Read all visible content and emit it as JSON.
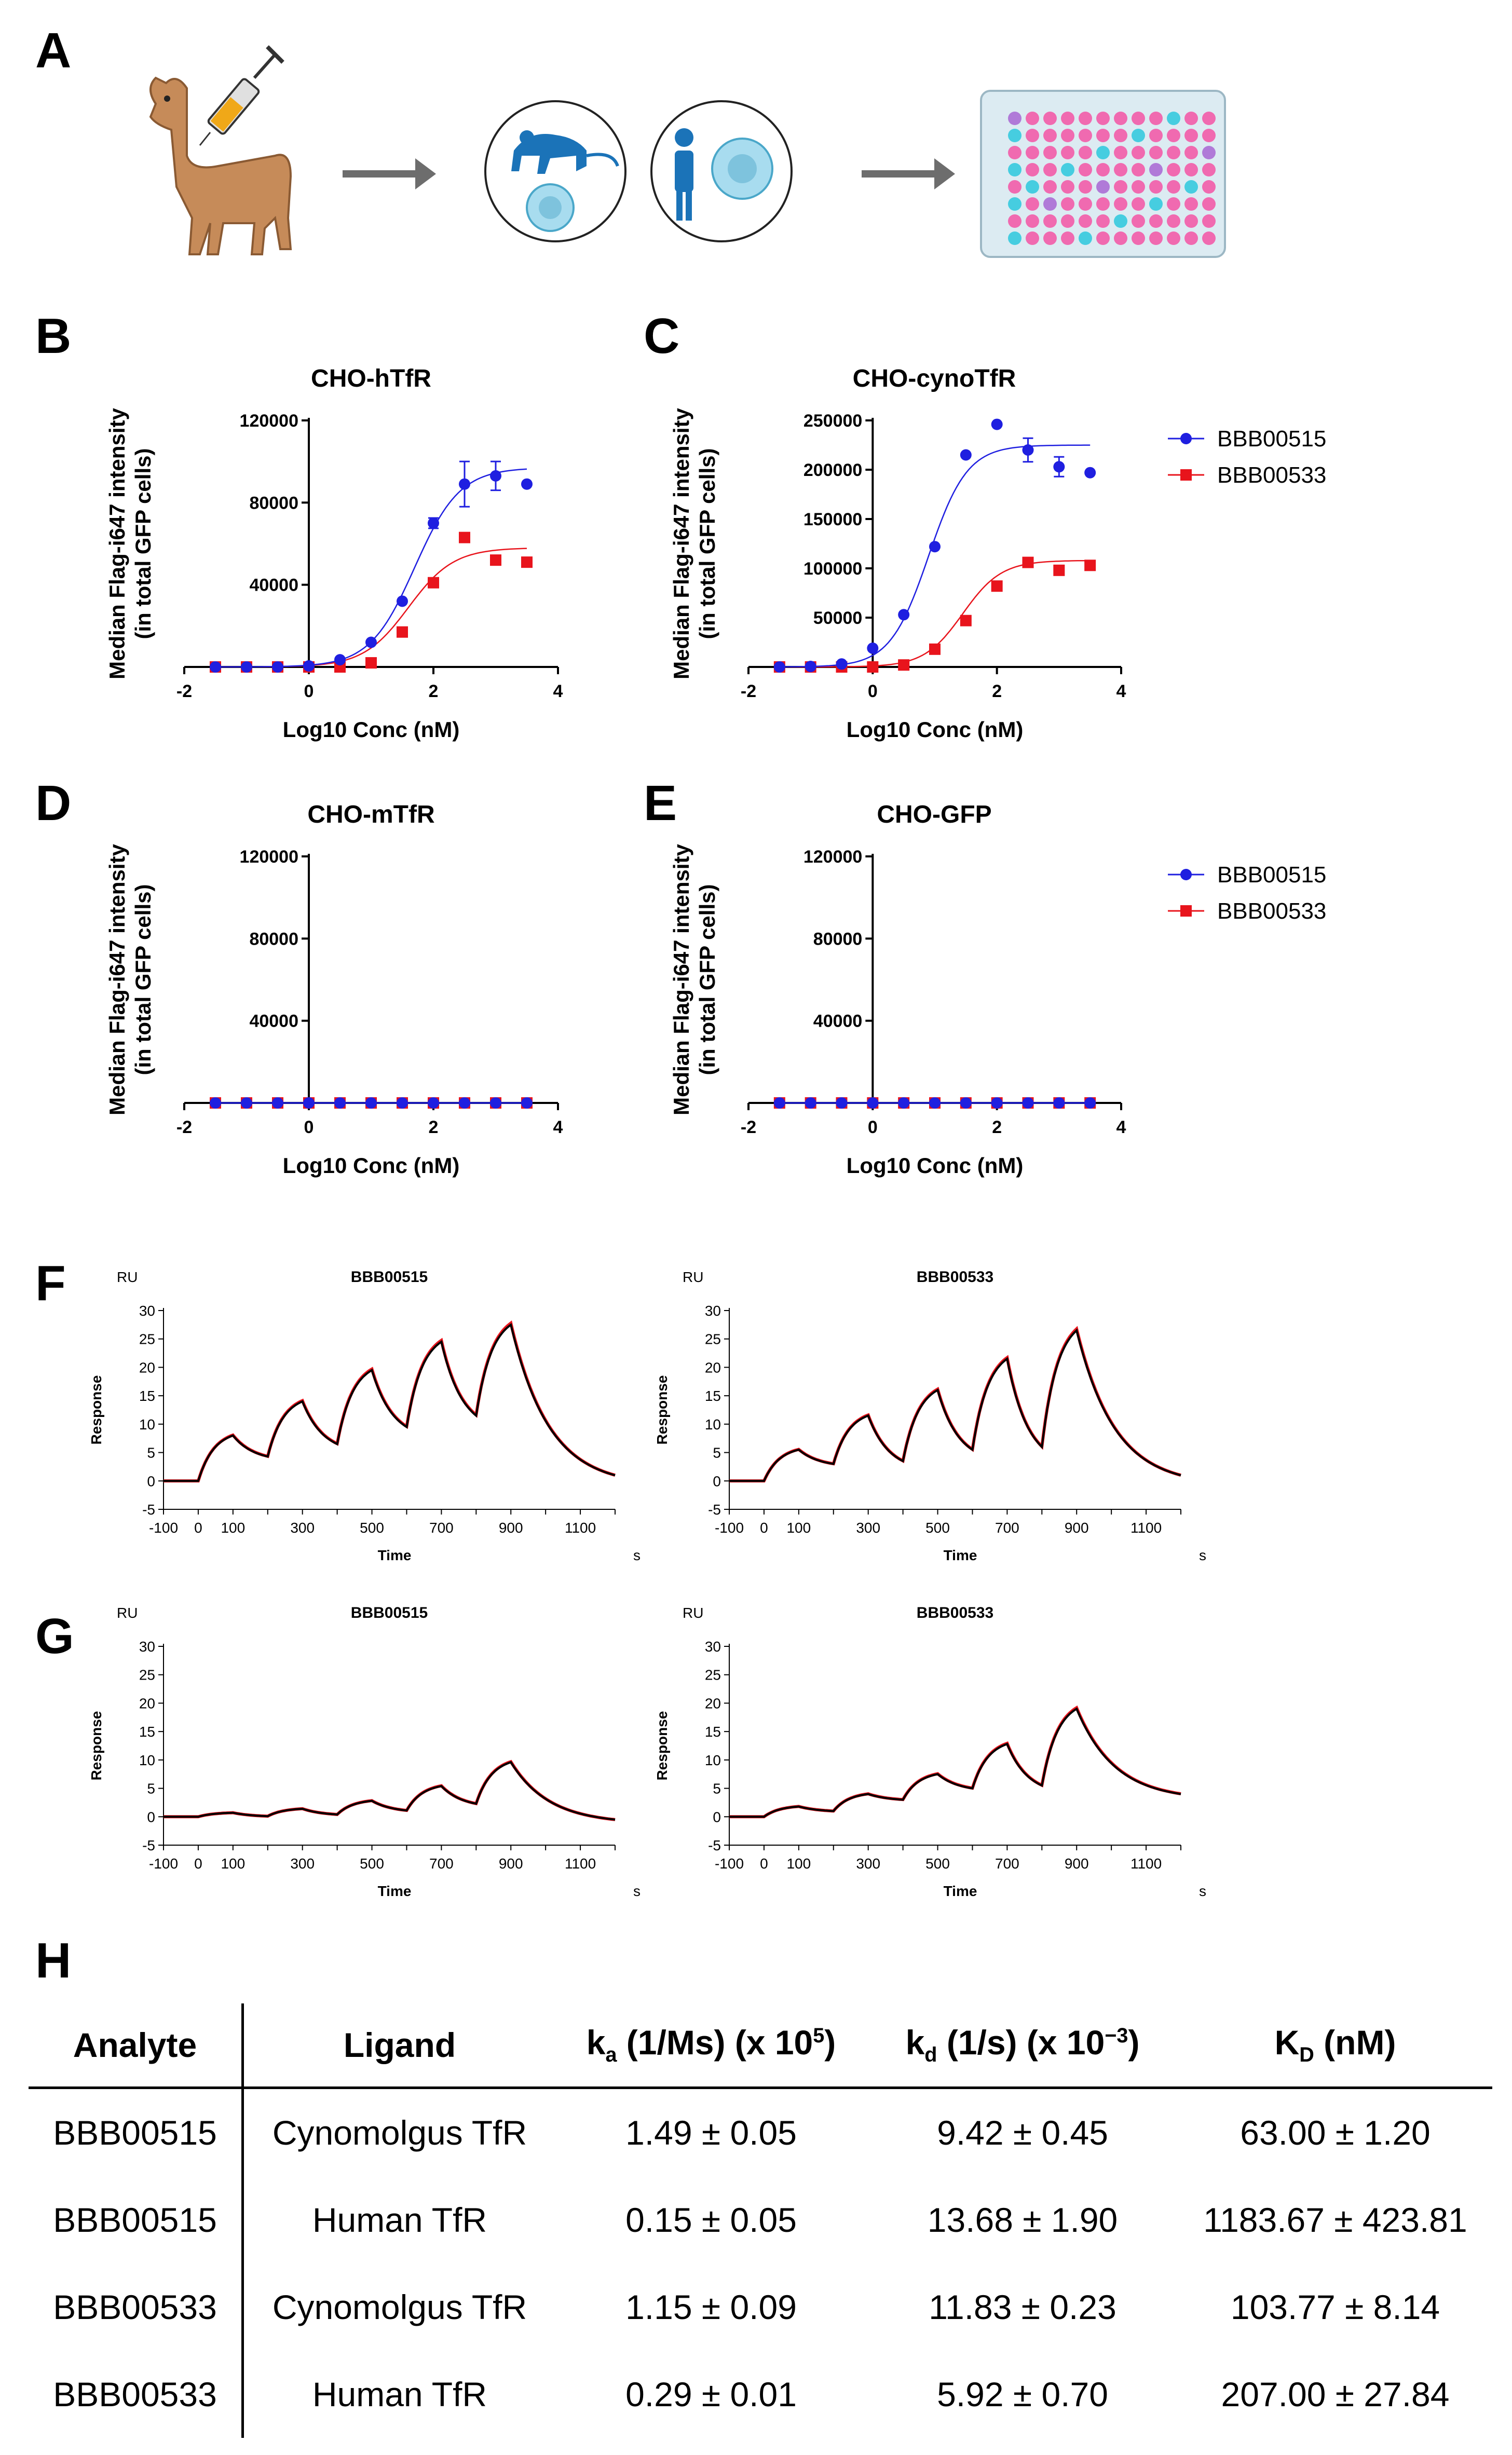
{
  "panels": {
    "A": "A",
    "B": "B",
    "C": "C",
    "D": "D",
    "E": "E",
    "F": "F",
    "G": "G",
    "H": "H"
  },
  "legend": {
    "series": [
      "BBB00515",
      "BBB00533"
    ]
  },
  "colors": {
    "blue": "#1f1fe0",
    "red": "#e8141c",
    "black": "#000000",
    "gray": "#6d6d6d"
  },
  "chart_data": [
    {
      "id": "B",
      "type": "scatter",
      "title": "CHO-hTfR",
      "xlabel": "Log10 Conc (nM)",
      "ylabel": [
        "Median Flag-i647 intensity",
        "(in total GFP cells)"
      ],
      "xlim": [
        -2,
        4
      ],
      "xticks": [
        -2,
        0,
        2,
        4
      ],
      "ylim": [
        0,
        120000
      ],
      "yticks": [
        40000,
        80000,
        120000
      ],
      "series": [
        {
          "name": "BBB00515",
          "x": [
            -1.5,
            -1,
            -0.5,
            0,
            0.5,
            1,
            1.5,
            2,
            2.5,
            3,
            3.5
          ],
          "y": [
            0,
            0,
            0,
            500,
            3500,
            12000,
            32000,
            70000,
            89000,
            93000,
            89000
          ],
          "err": [
            0,
            0,
            0,
            0,
            0,
            0,
            0,
            2500,
            11000,
            7000,
            0
          ],
          "fit": {
            "bottom": 0,
            "top": 97000,
            "ec50": 1.7,
            "hill": 1.2
          }
        },
        {
          "name": "BBB00533",
          "x": [
            -1.5,
            -1,
            -0.5,
            0,
            0.5,
            1,
            1.5,
            2,
            2.5,
            3,
            3.5
          ],
          "y": [
            0,
            0,
            0,
            0,
            0,
            2000,
            17000,
            41000,
            63000,
            52000,
            51000
          ],
          "err": [
            0,
            0,
            0,
            0,
            0,
            0,
            0,
            0,
            0,
            0,
            0
          ],
          "fit": {
            "bottom": 0,
            "top": 58000,
            "ec50": 1.6,
            "hill": 1.2
          }
        }
      ]
    },
    {
      "id": "C",
      "type": "scatter",
      "title": "CHO-cynoTfR",
      "xlabel": "Log10 Conc (nM)",
      "ylabel": [
        "Median Flag-i647 intensity",
        "(in total GFP cells)"
      ],
      "xlim": [
        -2,
        4
      ],
      "xticks": [
        -2,
        0,
        2,
        4
      ],
      "ylim": [
        0,
        250000
      ],
      "yticks": [
        50000,
        100000,
        150000,
        200000,
        250000
      ],
      "series": [
        {
          "name": "BBB00515",
          "x": [
            -1.5,
            -1,
            -0.5,
            0,
            0.5,
            1,
            1.5,
            2,
            2.5,
            3,
            3.5
          ],
          "y": [
            0,
            500,
            3000,
            19000,
            53000,
            122000,
            215000,
            246000,
            220000,
            203000,
            197000
          ],
          "err": [
            0,
            0,
            0,
            0,
            0,
            0,
            0,
            0,
            12000,
            10000,
            0
          ],
          "fit": {
            "bottom": 0,
            "top": 225000,
            "ec50": 0.9,
            "hill": 1.4
          }
        },
        {
          "name": "BBB00533",
          "x": [
            -1.5,
            -1,
            -0.5,
            0,
            0.5,
            1,
            1.5,
            2,
            2.5,
            3,
            3.5
          ],
          "y": [
            0,
            0,
            0,
            0,
            2000,
            18000,
            47000,
            82000,
            106000,
            98000,
            103000
          ],
          "err": [
            0,
            0,
            0,
            0,
            0,
            0,
            0,
            0,
            0,
            0,
            0
          ],
          "fit": {
            "bottom": 0,
            "top": 108000,
            "ec50": 1.45,
            "hill": 1.4
          }
        }
      ]
    },
    {
      "id": "D",
      "type": "scatter",
      "title": "CHO-mTfR",
      "xlabel": "Log10 Conc (nM)",
      "ylabel": [
        "Median Flag-i647 intensity",
        "(in total GFP cells)"
      ],
      "xlim": [
        -2,
        4
      ],
      "xticks": [
        -2,
        0,
        2,
        4
      ],
      "ylim": [
        0,
        120000
      ],
      "yticks": [
        40000,
        80000,
        120000
      ],
      "series": [
        {
          "name": "BBB00515",
          "x": [
            -1.5,
            -1,
            -0.5,
            0,
            0.5,
            1,
            1.5,
            2,
            2.5,
            3,
            3.5
          ],
          "y": [
            0,
            0,
            0,
            0,
            0,
            0,
            0,
            0,
            0,
            0,
            0
          ],
          "err": [
            0,
            0,
            0,
            0,
            0,
            0,
            0,
            0,
            0,
            0,
            0
          ]
        },
        {
          "name": "BBB00533",
          "x": [
            -1.5,
            -1,
            -0.5,
            0,
            0.5,
            1,
            1.5,
            2,
            2.5,
            3,
            3.5
          ],
          "y": [
            0,
            0,
            0,
            0,
            0,
            0,
            0,
            0,
            0,
            0,
            0
          ],
          "err": [
            0,
            0,
            0,
            0,
            0,
            0,
            0,
            0,
            0,
            0,
            0
          ]
        }
      ]
    },
    {
      "id": "E",
      "type": "scatter",
      "title": "CHO-GFP",
      "xlabel": "Log10 Conc (nM)",
      "ylabel": [
        "Median Flag-i647 intensity",
        "(in total GFP cells)"
      ],
      "xlim": [
        -2,
        4
      ],
      "xticks": [
        -2,
        0,
        2,
        4
      ],
      "ylim": [
        0,
        120000
      ],
      "yticks": [
        40000,
        80000,
        120000
      ],
      "series": [
        {
          "name": "BBB00515",
          "x": [
            -1.5,
            -1,
            -0.5,
            0,
            0.5,
            1,
            1.5,
            2,
            2.5,
            3,
            3.5
          ],
          "y": [
            0,
            0,
            0,
            0,
            0,
            0,
            0,
            0,
            0,
            0,
            0
          ],
          "err": [
            0,
            0,
            0,
            0,
            0,
            0,
            0,
            0,
            0,
            0,
            0
          ]
        },
        {
          "name": "BBB00533",
          "x": [
            -1.5,
            -1,
            -0.5,
            0,
            0.5,
            1,
            1.5,
            2,
            2.5,
            3,
            3.5
          ],
          "y": [
            0,
            0,
            0,
            0,
            0,
            0,
            0,
            0,
            0,
            0,
            0
          ],
          "err": [
            0,
            0,
            0,
            0,
            0,
            0,
            0,
            0,
            0,
            0,
            0
          ]
        }
      ]
    },
    {
      "id": "F1",
      "type": "line",
      "title": "BBB00515",
      "unit": "RU",
      "ylabel": "Response",
      "xlabel": "Time",
      "xunit": "s",
      "xlim": [
        -100,
        1200
      ],
      "xticks": [
        -100,
        0,
        100,
        300,
        500,
        700,
        900,
        1100
      ],
      "ylim": [
        -5,
        30
      ],
      "yticks": [
        -5,
        0,
        5,
        10,
        15,
        20,
        25,
        30
      ],
      "peaks": [
        [
          100,
          8
        ],
        [
          300,
          14
        ],
        [
          500,
          19.5
        ],
        [
          700,
          24.5
        ],
        [
          900,
          27.5
        ]
      ],
      "troughs": [
        [
          200,
          4.3
        ],
        [
          400,
          6.5
        ],
        [
          600,
          9.5
        ],
        [
          800,
          11.5
        ]
      ],
      "end": [
        1200,
        1
      ]
    },
    {
      "id": "F2",
      "type": "line",
      "title": "BBB00533",
      "unit": "RU",
      "ylabel": "Response",
      "xlabel": "Time",
      "xunit": "s",
      "xlim": [
        -100,
        1200
      ],
      "xticks": [
        -100,
        0,
        100,
        300,
        500,
        700,
        900,
        1100
      ],
      "ylim": [
        -5,
        30
      ],
      "yticks": [
        -5,
        0,
        5,
        10,
        15,
        20,
        25,
        30
      ],
      "peaks": [
        [
          100,
          5.5
        ],
        [
          300,
          11.5
        ],
        [
          500,
          16
        ],
        [
          700,
          21.5
        ],
        [
          900,
          26.5
        ]
      ],
      "troughs": [
        [
          200,
          3
        ],
        [
          400,
          3.5
        ],
        [
          600,
          5.5
        ],
        [
          800,
          6
        ]
      ],
      "end": [
        1200,
        1
      ]
    },
    {
      "id": "G1",
      "type": "line",
      "title": "BBB00515",
      "unit": "RU",
      "ylabel": "Response",
      "xlabel": "Time",
      "xunit": "s",
      "xlim": [
        -100,
        1200
      ],
      "xticks": [
        -100,
        0,
        100,
        300,
        500,
        700,
        900,
        1100
      ],
      "ylim": [
        -5,
        30
      ],
      "yticks": [
        -5,
        0,
        5,
        10,
        15,
        20,
        25,
        30
      ],
      "peaks": [
        [
          100,
          0.7
        ],
        [
          300,
          1.4
        ],
        [
          500,
          2.8
        ],
        [
          700,
          5.4
        ],
        [
          900,
          9.6
        ]
      ],
      "troughs": [
        [
          200,
          0.1
        ],
        [
          400,
          0.4
        ],
        [
          600,
          1.1
        ],
        [
          800,
          2.3
        ]
      ],
      "end": [
        1200,
        -0.5
      ]
    },
    {
      "id": "G2",
      "type": "line",
      "title": "BBB00533",
      "unit": "RU",
      "ylabel": "Response",
      "xlabel": "Time",
      "xunit": "s",
      "xlim": [
        -100,
        1200
      ],
      "xticks": [
        -100,
        0,
        100,
        300,
        500,
        700,
        900,
        1100
      ],
      "ylim": [
        -5,
        30
      ],
      "yticks": [
        -5,
        0,
        5,
        10,
        15,
        20,
        25,
        30
      ],
      "peaks": [
        [
          100,
          1.8
        ],
        [
          300,
          4
        ],
        [
          500,
          7.5
        ],
        [
          700,
          12.8
        ],
        [
          900,
          19
        ]
      ],
      "troughs": [
        [
          200,
          1
        ],
        [
          400,
          3
        ],
        [
          600,
          5
        ],
        [
          800,
          5.5
        ]
      ],
      "end": [
        1200,
        4
      ]
    }
  ],
  "table": {
    "headers": {
      "analyte": "Analyte",
      "ligand": "Ligand",
      "ka_k": "k",
      "ka_sub": "a",
      "ka_rest": " (1/Ms) (x 10",
      "ka_sup": "5",
      "ka_close": ")",
      "kd_k": "k",
      "kd_sub": "d",
      "kd_rest": " (1/s) (x 10",
      "kd_sup": "−3",
      "kd_close": ")",
      "KD_k": "K",
      "KD_sub": "D",
      "KD_rest": " (nM)"
    },
    "rows": [
      {
        "analyte": "BBB00515",
        "ligand": "Cynomolgus TfR",
        "ka": "1.49 ± 0.05",
        "kd": "9.42 ± 0.45",
        "KD": "63.00 ± 1.20"
      },
      {
        "analyte": "BBB00515",
        "ligand": "Human TfR",
        "ka": "0.15 ± 0.05",
        "kd": "13.68 ± 1.90",
        "KD": "1183.67 ± 423.81"
      },
      {
        "analyte": "BBB00533",
        "ligand": "Cynomolgus TfR",
        "ka": "1.15 ± 0.09",
        "kd": "11.83 ± 0.23",
        "KD": "103.77 ± 8.14"
      },
      {
        "analyte": "BBB00533",
        "ligand": "Human TfR",
        "ka": "0.29 ± 0.01",
        "kd": "5.92 ± 0.70",
        "KD": "207.00 ± 27.84"
      }
    ]
  }
}
